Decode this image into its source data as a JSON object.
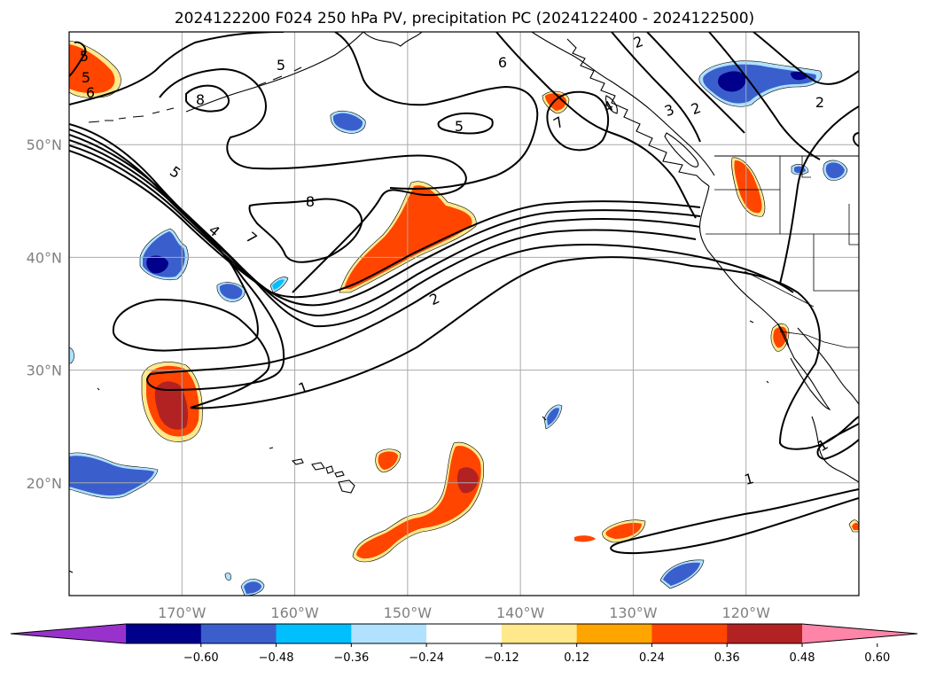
{
  "title": "2024122200 F024 250 hPa PV, precipitation PC (2024122400 - 2024122500)",
  "map": {
    "projection": "cylindrical",
    "lon_range": [
      -180,
      -110
    ],
    "lat_range": [
      10,
      60
    ],
    "gridlines": true,
    "lon_ticks": [
      -170,
      -160,
      -150,
      -140,
      -130,
      -120
    ],
    "lat_ticks": [
      20,
      30,
      40,
      50
    ],
    "lon_labels": [
      "170°W",
      "160°W",
      "150°W",
      "140°W",
      "130°W",
      "120°W"
    ],
    "lat_labels": [
      "20°N",
      "30°N",
      "40°N",
      "50°N"
    ]
  },
  "colorbar": {
    "orientation": "horizontal",
    "extend": "both",
    "colors": [
      "#9932cc",
      "#00008b",
      "#3a5fcd",
      "#00bfff",
      "#b0e2ff",
      "#ffffff",
      "#ffe98c",
      "#ffa500",
      "#ff4500",
      "#b22222",
      "#ff85a8"
    ],
    "labels": [
      "−0.60",
      "−0.48",
      "−0.36",
      "−0.24",
      "−0.12",
      "0.12",
      "0.24",
      "0.36",
      "0.48",
      "0.60"
    ]
  },
  "pv_contours": {
    "color": "#000000",
    "levels": [
      1,
      2,
      3,
      4,
      5,
      6,
      7,
      8
    ],
    "labels": [
      "1",
      "1",
      "1",
      "2",
      "2",
      "2",
      "4",
      "5",
      "5",
      "5",
      "5",
      "6",
      "6",
      "7",
      "7",
      "8",
      "8",
      "3",
      "4",
      "5",
      "2"
    ]
  },
  "precip_colors": {
    "pos_light": "#ffe98c",
    "pos_mid": "#ffa500",
    "pos_strong": "#ff4500",
    "pos_max": "#b22222",
    "neg_light": "#b0e2ff",
    "neg_mid": "#00bfff",
    "neg_strong": "#3a5fcd",
    "neg_max": "#00008b"
  }
}
